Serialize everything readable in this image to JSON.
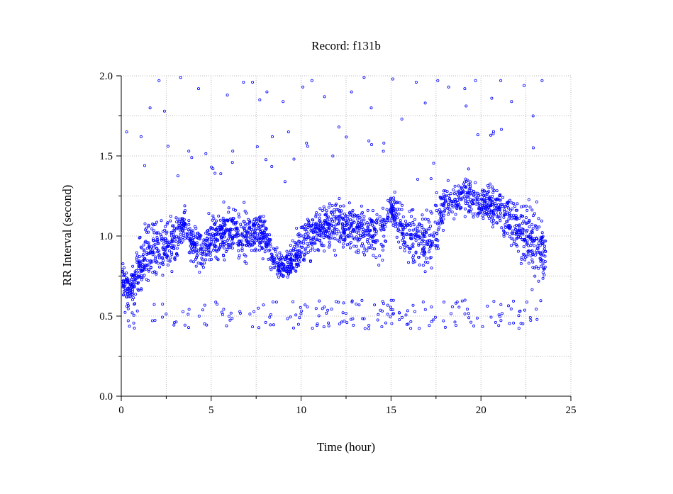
{
  "chart_data": {
    "type": "scatter",
    "title": "Record:  f131b",
    "xlabel": "Time (hour)",
    "ylabel": "RR Interval (second)",
    "xlim": [
      0,
      25
    ],
    "ylim": [
      0,
      2
    ],
    "xticks": [
      0,
      5,
      10,
      15,
      20,
      25
    ],
    "xtick_labels": [
      "0",
      "5",
      "10",
      "15",
      "20",
      "25"
    ],
    "yticks": [
      0,
      0.5,
      1,
      1.5,
      2
    ],
    "ytick_labels": [
      "0.0",
      "0.5",
      "1.0",
      "1.5",
      "2.0"
    ],
    "grid": true,
    "marker": "open-circle",
    "point_color": "#0000ff",
    "series": [
      {
        "x_range": [
          0.05,
          23.6
        ],
        "profile": {
          "x": [
            0.0,
            0.5,
            1.0,
            1.5,
            2.0,
            2.5,
            3.0,
            3.5,
            4.0,
            4.5,
            5.0,
            5.5,
            6.0,
            6.5,
            7.0,
            7.5,
            8.0,
            8.5,
            9.0,
            9.5,
            10.0,
            10.5,
            11.0,
            11.5,
            12.0,
            12.5,
            13.0,
            13.5,
            14.0,
            14.5,
            15.0,
            15.5,
            16.0,
            16.5,
            17.0,
            17.5,
            18.0,
            18.5,
            19.0,
            19.5,
            20.0,
            20.5,
            21.0,
            21.5,
            22.0,
            22.5,
            23.0,
            23.6
          ],
          "center": [
            0.75,
            0.66,
            0.82,
            0.9,
            0.92,
            0.95,
            0.98,
            1.08,
            0.94,
            0.93,
            0.98,
            1.02,
            1.04,
            1.02,
            0.99,
            1.02,
            1.0,
            0.84,
            0.82,
            0.83,
            0.94,
            0.98,
            1.04,
            1.06,
            1.07,
            1.06,
            1.04,
            1.03,
            1.04,
            1.0,
            1.18,
            1.08,
            0.98,
            0.98,
            0.96,
            1.06,
            1.2,
            1.22,
            1.25,
            1.24,
            1.2,
            1.2,
            1.18,
            1.1,
            1.05,
            1.0,
            0.95,
            0.9
          ],
          "spread": [
            0.2,
            0.18,
            0.28,
            0.35,
            0.3,
            0.3,
            0.3,
            0.2,
            0.22,
            0.24,
            0.24,
            0.24,
            0.24,
            0.26,
            0.26,
            0.25,
            0.2,
            0.14,
            0.16,
            0.18,
            0.24,
            0.24,
            0.26,
            0.26,
            0.26,
            0.26,
            0.26,
            0.26,
            0.26,
            0.3,
            0.16,
            0.26,
            0.3,
            0.3,
            0.3,
            0.3,
            0.2,
            0.2,
            0.22,
            0.22,
            0.2,
            0.2,
            0.22,
            0.28,
            0.3,
            0.32,
            0.36,
            0.36
          ]
        },
        "outliers": {
          "x": [
            0.3,
            1.1,
            1.3,
            1.6,
            2.1,
            2.4,
            2.6,
            3.3,
            4.3,
            5.1,
            5.9,
            6.2,
            6.8,
            7.3,
            7.7,
            8.1,
            8.4,
            9.0,
            9.3,
            9.6,
            10.1,
            10.3,
            10.6,
            11.3,
            12.1,
            12.8,
            13.5,
            13.9,
            14.6,
            15.1,
            15.6,
            16.4,
            16.9,
            17.6,
            18.2,
            19.1,
            19.7,
            20.6,
            21.1,
            21.7,
            22.4,
            22.9,
            23.4
          ],
          "y": [
            1.65,
            1.62,
            1.44,
            1.8,
            1.97,
            1.78,
            1.56,
            1.99,
            1.92,
            1.42,
            1.88,
            1.53,
            1.96,
            1.96,
            1.85,
            1.9,
            1.62,
            1.84,
            1.65,
            1.48,
            1.93,
            1.58,
            1.97,
            1.87,
            1.68,
            1.9,
            1.99,
            1.8,
            1.58,
            1.98,
            1.73,
            1.96,
            1.83,
            1.97,
            1.93,
            1.92,
            1.97,
            1.86,
            1.97,
            1.84,
            1.94,
            1.75,
            1.97
          ]
        }
      }
    ]
  }
}
